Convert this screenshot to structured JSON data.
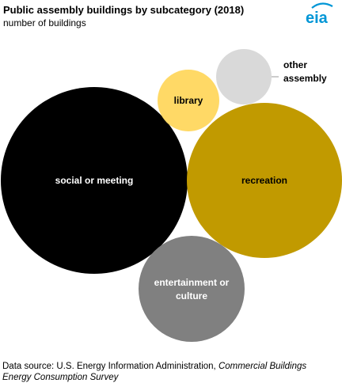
{
  "header": {
    "title": "Public assembly buildings by subcategory (2018)",
    "subtitle": "number of buildings"
  },
  "logo": {
    "text": "eia",
    "icon": "eia-logo-icon",
    "color": "#0096d6"
  },
  "chart_data": {
    "type": "bubble",
    "title": "Public assembly buildings by subcategory (2018)",
    "subtitle": "number of buildings",
    "series": [
      {
        "name": "social or meeting",
        "label_lines": [
          "social or meeting"
        ],
        "color": "#000000",
        "label_color": "#ffffff"
      },
      {
        "name": "recreation",
        "label_lines": [
          "recreation"
        ],
        "color": "#c19a00",
        "label_color": "#000000"
      },
      {
        "name": "entertainment or culture",
        "label_lines": [
          "entertainment or",
          "culture"
        ],
        "color": "#808080",
        "label_color": "#ffffff"
      },
      {
        "name": "library",
        "label_lines": [
          "library"
        ],
        "color": "#ffd966",
        "label_color": "#000000"
      },
      {
        "name": "other assembly",
        "label_lines": [
          "other",
          "assembly"
        ],
        "color": "#d9d9d9",
        "label_color": "#000000",
        "label_outside": true
      }
    ]
  },
  "footer": {
    "source_prefix": "Data source: U.S. Energy Information Administration, ",
    "source_italic": "Commercial Buildings Energy Consumption Survey"
  }
}
